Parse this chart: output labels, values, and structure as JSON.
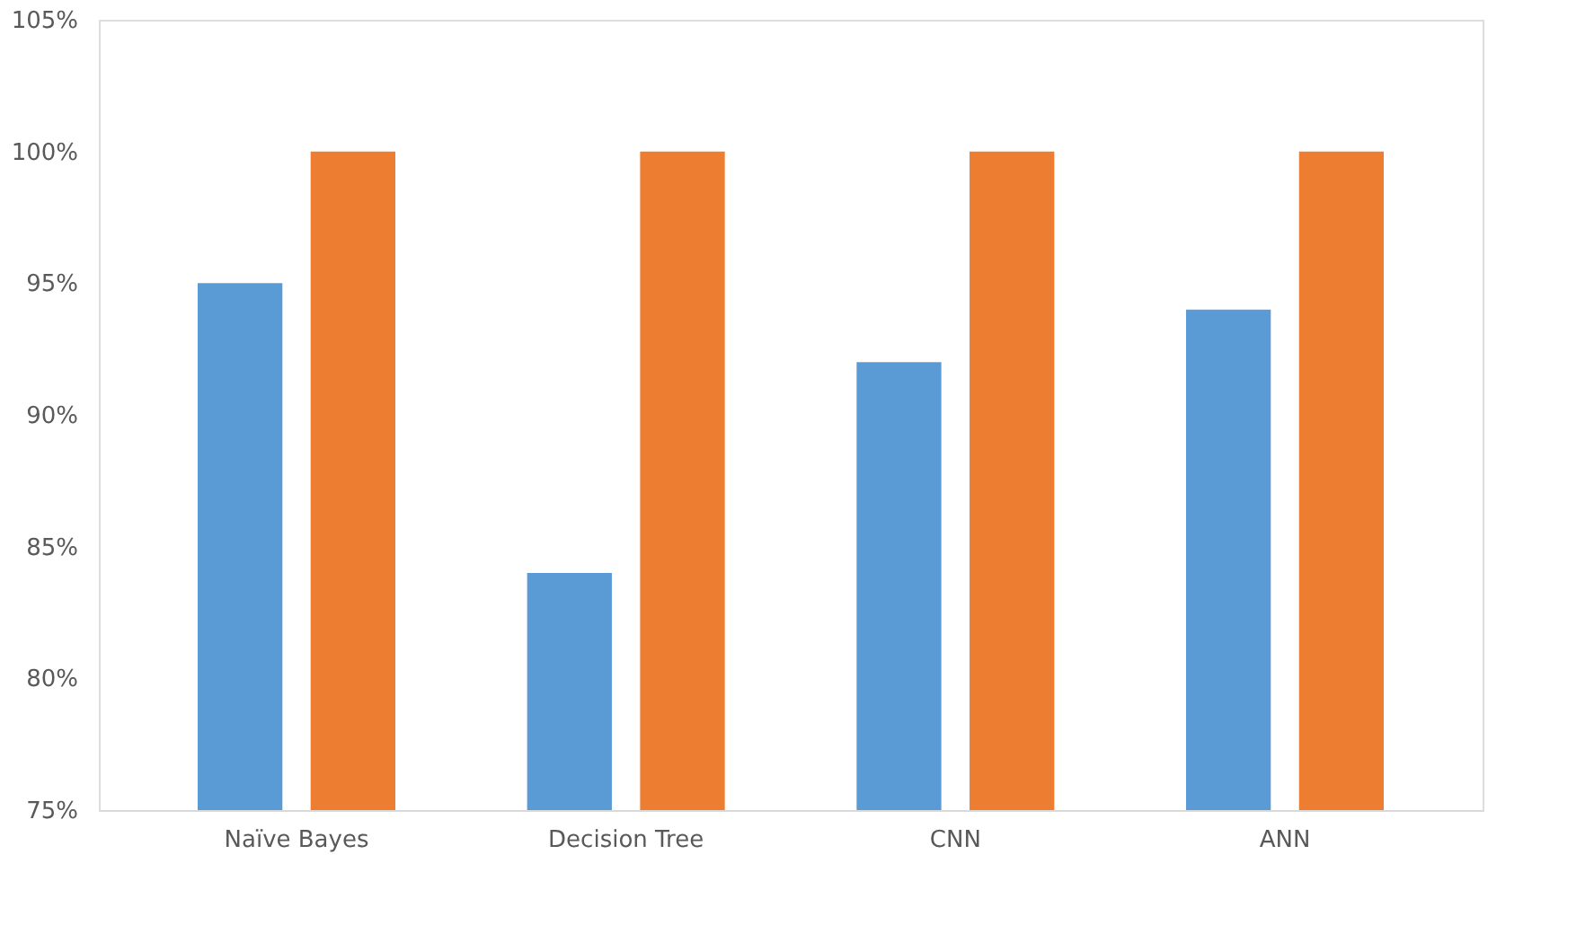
{
  "chart_data": {
    "type": "bar",
    "categories": [
      "Naïve Bayes",
      "Decision Tree",
      "CNN",
      "ANN"
    ],
    "series": [
      {
        "color": "#5b9bd5",
        "values": [
          95,
          84,
          92,
          94
        ]
      },
      {
        "color": "#ed7d31",
        "values": [
          100,
          100,
          100,
          100
        ]
      }
    ],
    "ylim": [
      75,
      105
    ],
    "yticks": [
      {
        "value": 75,
        "label": "75%"
      },
      {
        "value": 80,
        "label": "80%"
      },
      {
        "value": 85,
        "label": "85%"
      },
      {
        "value": 90,
        "label": "90%"
      },
      {
        "value": 95,
        "label": "95%"
      },
      {
        "value": 100,
        "label": "100%"
      },
      {
        "value": 105,
        "label": "105%"
      }
    ],
    "grid": false,
    "legend": false
  }
}
